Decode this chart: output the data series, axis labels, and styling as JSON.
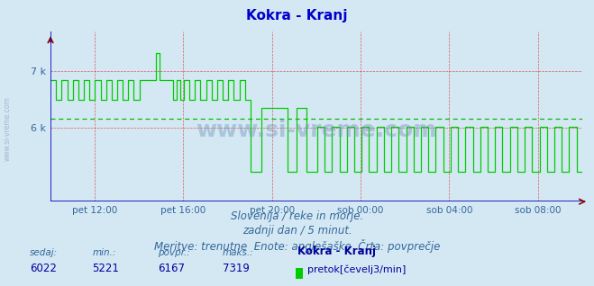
{
  "title": "Kokra - Kranj",
  "title_color": "#0000cc",
  "bg_color": "#d4e8f4",
  "plot_bg_color": "#d4e8f4",
  "line_color": "#00cc00",
  "avg_line_color": "#00bb00",
  "avg_value": 6167,
  "min_value": 5221,
  "max_value": 7319,
  "current_value": 6022,
  "ylim_min": 4700,
  "ylim_max": 7700,
  "xtick_labels": [
    "pet 12:00",
    "pet 16:00",
    "pet 20:00",
    "sob 00:00",
    "sob 04:00",
    "sob 08:00"
  ],
  "grid_color": "#dd0000",
  "axis_color": "#0000bb",
  "watermark_text": "www.si-vreme.com",
  "watermark_color": "#7799bb",
  "sidebar_text": "www.si-vreme.com",
  "footer_line1": "Slovenija / reke in morje.",
  "footer_line2": "zadnji dan / 5 minut.",
  "footer_line3": "Meritve: trenutne  Enote: anglešaške  Črta: povprečje",
  "footer_color": "#336699",
  "footer_fontsize": 8.5,
  "stats_labels": [
    "sedaj:",
    "min.:",
    "povpr.:",
    "maks.:"
  ],
  "stats_values": [
    "6022",
    "5221",
    "6167",
    "7319"
  ],
  "stats_label_color": "#336699",
  "stats_value_color": "#000099",
  "stats_name": "Kokra - Kranj",
  "stats_unit": "pretok[čevelj3/min]",
  "legend_color": "#00cc00",
  "signal_high1": 6850,
  "signal_low1": 6500,
  "signal_spike": 7319,
  "signal_high2": 6500,
  "signal_low2": 5221,
  "signal_high3": 6022,
  "signal_low3": 5221
}
